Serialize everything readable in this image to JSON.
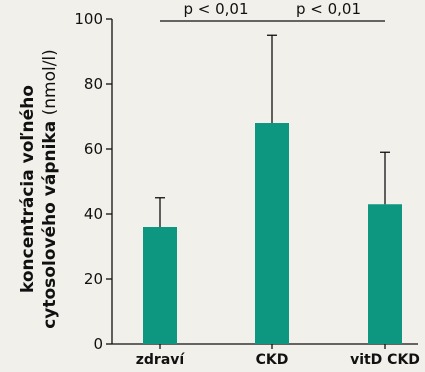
{
  "chart_data": {
    "type": "bar",
    "categories": [
      "zdraví",
      "CKD",
      "vitD CKD"
    ],
    "values": [
      36,
      68,
      43
    ],
    "error_upper": [
      45,
      95,
      59
    ],
    "ylim": [
      0,
      100
    ],
    "yticks": [
      "0",
      "20",
      "40",
      "60",
      "80",
      "100"
    ],
    "ylabel": {
      "line1": "koncentrácia voľného",
      "line2_bold": "cytosolového vápnika",
      "line2_unit": "(nmol/l)"
    },
    "annotations": [
      {
        "text": "p < 0,01",
        "from": "zdraví",
        "to": "CKD"
      },
      {
        "text": "p < 0,01",
        "from": "CKD",
        "to": "vitD CKD"
      }
    ],
    "bar_color": "#0d9680",
    "background": "#f2f0ea",
    "grid": false
  }
}
